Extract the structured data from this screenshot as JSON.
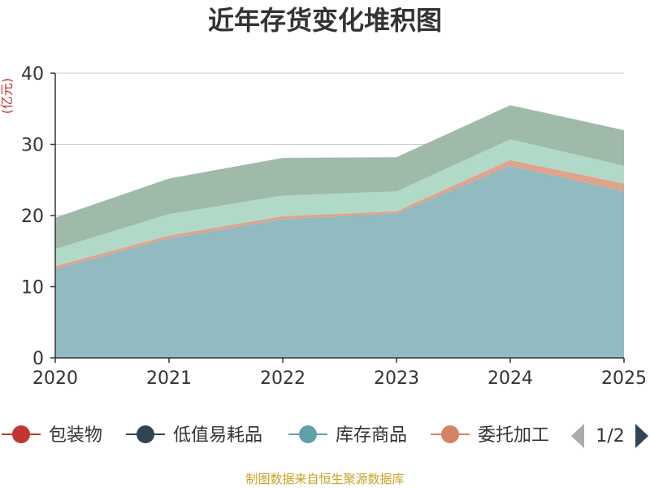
{
  "chart_data": {
    "type": "area",
    "stacked": true,
    "title": "近年存货变化堆积图",
    "ylabel": "(亿元)",
    "ylim": [
      0,
      40
    ],
    "yticks": [
      0,
      10,
      20,
      30,
      40
    ],
    "categories": [
      "2020",
      "2021",
      "2022",
      "2023",
      "2024",
      "2025"
    ],
    "grid": true,
    "series": [
      {
        "name": "库存商品",
        "color": "#91bac1",
        "values": [
          12.5,
          16.8,
          19.5,
          20.3,
          27.0,
          23.4
        ]
      },
      {
        "name": "委托加工",
        "color": "#e0a38b",
        "values": [
          0.4,
          0.4,
          0.4,
          0.3,
          0.8,
          1.1
        ]
      },
      {
        "name": "",
        "color": "#b0d9c8",
        "values": [
          2.4,
          3.0,
          2.9,
          2.8,
          2.9,
          2.5
        ]
      },
      {
        "name": "",
        "color": "#9fbaa8",
        "values": [
          4.4,
          5.0,
          5.3,
          4.8,
          4.8,
          5.0
        ]
      }
    ],
    "legend": {
      "placement": "bottom",
      "items": [
        {
          "name": "包装物",
          "color": "#c23531"
        },
        {
          "name": "低值易耗品",
          "color": "#2f4554"
        },
        {
          "name": "库存商品",
          "color": "#61a0a8"
        },
        {
          "name": "委托加工",
          "color": "#d48265"
        }
      ],
      "page": "1/2"
    }
  },
  "footer": {
    "source": "制图数据来自恒生聚源数据库"
  },
  "icons": {
    "prev": "arrow-left-icon",
    "next": "arrow-right-icon"
  }
}
